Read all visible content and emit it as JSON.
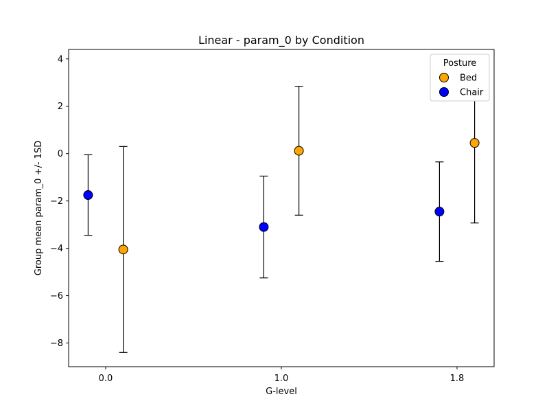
{
  "chart_data": {
    "type": "scatter",
    "title": "Linear - param_0 by Condition",
    "xlabel": "G-level",
    "ylabel": "Group mean param_0 +/- 1SD",
    "categories": [
      "0.0",
      "1.0",
      "1.8"
    ],
    "ylim": [
      -9.0,
      4.4
    ],
    "yticks": [
      4,
      2,
      0,
      -2,
      -4,
      -6,
      -8
    ],
    "ytick_labels": [
      "4",
      "2",
      "0",
      "−2",
      "−4",
      "−6",
      "−8"
    ],
    "grid": false,
    "legend": {
      "title": "Posture",
      "position": "top-right"
    },
    "series": [
      {
        "name": "Bed",
        "color": "#FFA500",
        "points": [
          {
            "category": "0.0",
            "mean": -4.05,
            "sd": 4.35
          },
          {
            "category": "1.0",
            "mean": 0.12,
            "sd": 2.72
          },
          {
            "category": "1.8",
            "mean": 0.45,
            "sd": 3.38
          }
        ]
      },
      {
        "name": "Chair",
        "color": "#0000FF",
        "points": [
          {
            "category": "0.0",
            "mean": -1.75,
            "sd": 1.7
          },
          {
            "category": "1.0",
            "mean": -3.1,
            "sd": 2.15
          },
          {
            "category": "1.8",
            "mean": -2.45,
            "sd": 2.1
          }
        ]
      }
    ]
  }
}
